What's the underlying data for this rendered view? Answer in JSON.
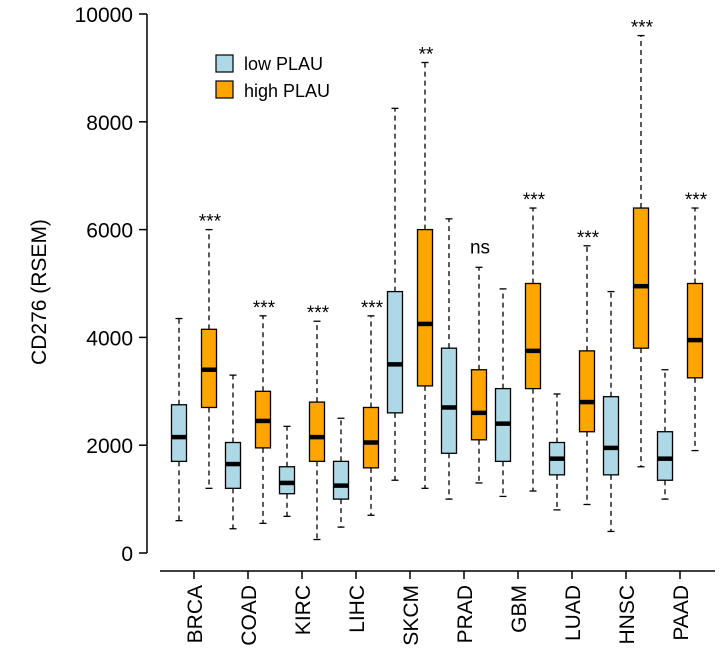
{
  "chart_data": {
    "type": "boxplot",
    "title": "",
    "xlabel": "",
    "ylabel": "CD276 (RSEM)",
    "ylim": [
      0,
      10000
    ],
    "yticks": [
      0,
      2000,
      4000,
      6000,
      8000,
      10000
    ],
    "yticks_text": [
      "0",
      "2000",
      "4000",
      "6000",
      "8000",
      "10000"
    ],
    "grid": false,
    "legend_position": "top-left",
    "colors": {
      "low": "#add8e6",
      "high": "#ffa500",
      "outline": "#000000"
    },
    "series": [
      {
        "name": "low PLAU",
        "key": "low"
      },
      {
        "name": "high PLAU",
        "key": "high"
      }
    ],
    "categories": [
      "BRCA",
      "COAD",
      "KIRC",
      "LIHC",
      "SKCM",
      "PRAD",
      "GBM",
      "LUAD",
      "HNSC",
      "PAAD"
    ],
    "groups": [
      {
        "category": "BRCA",
        "significance": "***",
        "low": {
          "whisker_low": 600,
          "q1": 1700,
          "median": 2150,
          "q3": 2750,
          "whisker_high": 4350
        },
        "high": {
          "whisker_low": 1200,
          "q1": 2700,
          "median": 3400,
          "q3": 4150,
          "whisker_high": 6000
        }
      },
      {
        "category": "COAD",
        "significance": "***",
        "low": {
          "whisker_low": 450,
          "q1": 1200,
          "median": 1650,
          "q3": 2050,
          "whisker_high": 3300
        },
        "high": {
          "whisker_low": 550,
          "q1": 1950,
          "median": 2450,
          "q3": 3000,
          "whisker_high": 4400
        }
      },
      {
        "category": "KIRC",
        "significance": "***",
        "low": {
          "whisker_low": 680,
          "q1": 1100,
          "median": 1300,
          "q3": 1600,
          "whisker_high": 2350
        },
        "high": {
          "whisker_low": 250,
          "q1": 1700,
          "median": 2150,
          "q3": 2800,
          "whisker_high": 4300
        }
      },
      {
        "category": "LIHC",
        "significance": "***",
        "low": {
          "whisker_low": 480,
          "q1": 1000,
          "median": 1250,
          "q3": 1700,
          "whisker_high": 2500
        },
        "high": {
          "whisker_low": 700,
          "q1": 1580,
          "median": 2050,
          "q3": 2700,
          "whisker_high": 4400
        }
      },
      {
        "category": "SKCM",
        "significance": "**",
        "low": {
          "whisker_low": 1350,
          "q1": 2600,
          "median": 3500,
          "q3": 4850,
          "whisker_high": 8250
        },
        "high": {
          "whisker_low": 1200,
          "q1": 3100,
          "median": 4250,
          "q3": 6000,
          "whisker_high": 9100
        }
      },
      {
        "category": "PRAD",
        "significance": "ns",
        "low": {
          "whisker_low": 1000,
          "q1": 1850,
          "median": 2700,
          "q3": 3800,
          "whisker_high": 6200
        },
        "high": {
          "whisker_low": 1300,
          "q1": 2100,
          "median": 2600,
          "q3": 3400,
          "whisker_high": 5300
        }
      },
      {
        "category": "GBM",
        "significance": "***",
        "low": {
          "whisker_low": 1050,
          "q1": 1700,
          "median": 2400,
          "q3": 3050,
          "whisker_high": 4900
        },
        "high": {
          "whisker_low": 1150,
          "q1": 3050,
          "median": 3750,
          "q3": 5000,
          "whisker_high": 6400
        }
      },
      {
        "category": "LUAD",
        "significance": "***",
        "low": {
          "whisker_low": 800,
          "q1": 1450,
          "median": 1750,
          "q3": 2050,
          "whisker_high": 2950
        },
        "high": {
          "whisker_low": 900,
          "q1": 2250,
          "median": 2800,
          "q3": 3750,
          "whisker_high": 5700
        }
      },
      {
        "category": "HNSC",
        "significance": "***",
        "low": {
          "whisker_low": 400,
          "q1": 1450,
          "median": 1950,
          "q3": 2900,
          "whisker_high": 4850
        },
        "high": {
          "whisker_low": 1600,
          "q1": 3800,
          "median": 4950,
          "q3": 6400,
          "whisker_high": 9600
        }
      },
      {
        "category": "PAAD",
        "significance": "***",
        "low": {
          "whisker_low": 1000,
          "q1": 1350,
          "median": 1750,
          "q3": 2250,
          "whisker_high": 3400
        },
        "high": {
          "whisker_low": 1900,
          "q1": 3250,
          "median": 3950,
          "q3": 5000,
          "whisker_high": 6400
        }
      }
    ]
  }
}
